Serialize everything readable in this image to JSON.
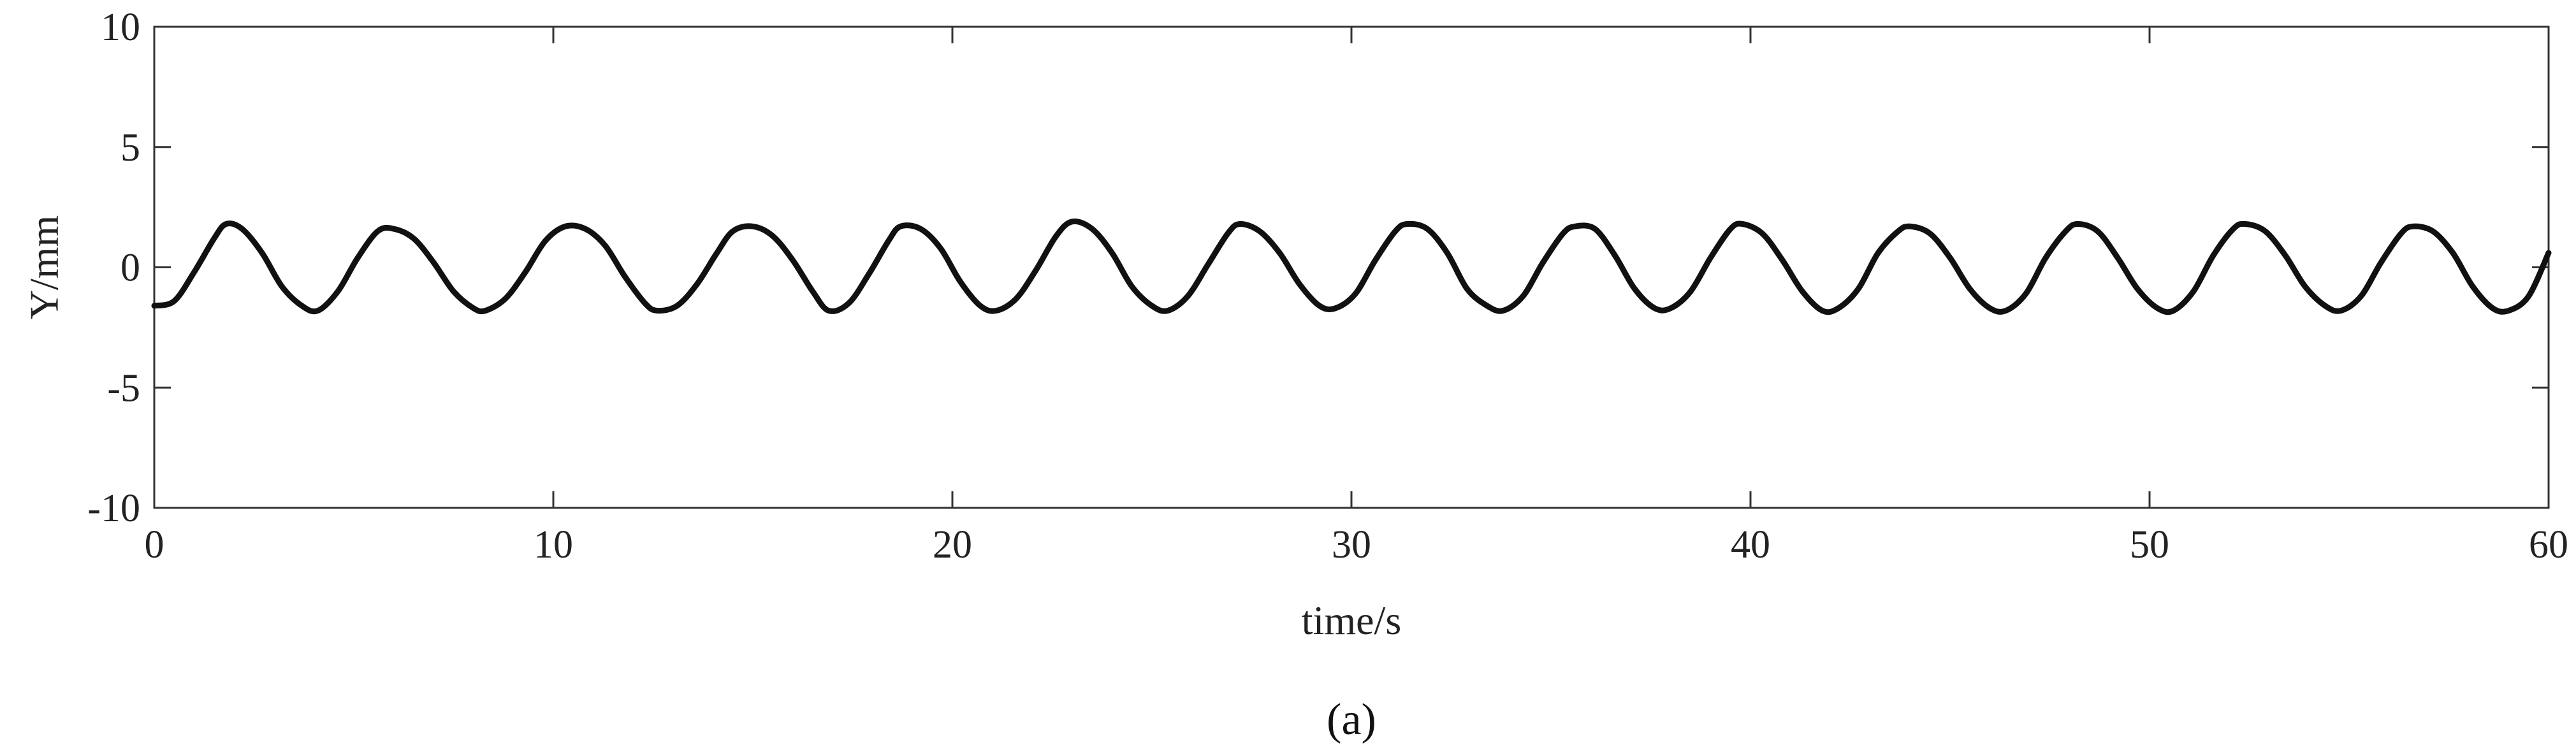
{
  "chart_data": {
    "type": "line",
    "title": "",
    "caption": "(a)",
    "xlabel": "time/s",
    "ylabel": "Y/mm",
    "xlim": [
      0,
      60
    ],
    "ylim": [
      -10,
      10
    ],
    "xticks": [
      0,
      10,
      20,
      30,
      40,
      50,
      60
    ],
    "yticks": [
      -10,
      -5,
      0,
      5,
      10
    ],
    "xtick_labels": [
      "0",
      "10",
      "20",
      "30",
      "40",
      "50",
      "60"
    ],
    "ytick_labels": [
      "-10",
      "-5",
      "0",
      "5",
      "10"
    ],
    "grid": false,
    "legend": "none",
    "line_color": "#111111",
    "series": [
      {
        "x": [
          0,
          0.5,
          1.0,
          1.5,
          1.8,
          2.2,
          2.7,
          3.2,
          3.7,
          4.1,
          4.6,
          5.1,
          5.6,
          6.0,
          6.5,
          7.0,
          7.5,
          8.0,
          8.3,
          8.8,
          9.3,
          9.8,
          10.3,
          10.8,
          11.3,
          11.8,
          12.3,
          12.6,
          13.1,
          13.6,
          14.1,
          14.5,
          15.0,
          15.5,
          16.0,
          16.5,
          16.9,
          17.4,
          17.9,
          18.4,
          18.7,
          19.2,
          19.7,
          20.2,
          20.7,
          21.1,
          21.6,
          22.1,
          22.6,
          23.0,
          23.5,
          24.0,
          24.5,
          25.0,
          25.4,
          25.9,
          26.4,
          26.9,
          27.2,
          27.7,
          28.2,
          28.7,
          29.2,
          29.6,
          30.1,
          30.6,
          31.1,
          31.4,
          31.9,
          32.4,
          32.9,
          33.4,
          33.8,
          34.3,
          34.8,
          35.3,
          35.6,
          36.1,
          36.6,
          37.1,
          37.6,
          38.0,
          38.5,
          39.0,
          39.5,
          39.8,
          40.3,
          40.8,
          41.3,
          41.8,
          42.2,
          42.7,
          43.2,
          43.7,
          44.0,
          44.5,
          45.0,
          45.5,
          46.0,
          46.4,
          46.9,
          47.4,
          47.9,
          48.2,
          48.7,
          49.2,
          49.7,
          50.2,
          50.6,
          51.1,
          51.6,
          52.1,
          52.4,
          52.9,
          53.4,
          53.9,
          54.4,
          54.8,
          55.3,
          55.8,
          56.3,
          56.6,
          57.1,
          57.6,
          58.1,
          58.6,
          59.0,
          59.5,
          60.0
        ],
        "y": [
          -1.6,
          -1.4,
          -0.2,
          1.2,
          1.8,
          1.6,
          0.6,
          -0.8,
          -1.6,
          -1.8,
          -1.0,
          0.4,
          1.5,
          1.6,
          1.2,
          0.2,
          -1.0,
          -1.7,
          -1.8,
          -1.3,
          -0.2,
          1.1,
          1.7,
          1.6,
          0.9,
          -0.4,
          -1.5,
          -1.8,
          -1.6,
          -0.7,
          0.6,
          1.5,
          1.7,
          1.3,
          0.3,
          -1.0,
          -1.8,
          -1.5,
          -0.3,
          1.1,
          1.7,
          1.6,
          0.8,
          -0.6,
          -1.6,
          -1.8,
          -1.3,
          -0.1,
          1.3,
          1.9,
          1.6,
          0.6,
          -0.8,
          -1.6,
          -1.8,
          -1.2,
          0.1,
          1.4,
          1.8,
          1.5,
          0.6,
          -0.7,
          -1.6,
          -1.7,
          -1.1,
          0.3,
          1.5,
          1.8,
          1.6,
          0.6,
          -0.9,
          -1.6,
          -1.8,
          -1.2,
          0.2,
          1.4,
          1.7,
          1.6,
          0.5,
          -0.9,
          -1.7,
          -1.7,
          -1.0,
          0.4,
          1.6,
          1.8,
          1.4,
          0.3,
          -1.0,
          -1.8,
          -1.7,
          -0.9,
          0.6,
          1.5,
          1.7,
          1.4,
          0.4,
          -0.9,
          -1.7,
          -1.8,
          -1.1,
          0.4,
          1.5,
          1.8,
          1.5,
          0.4,
          -0.9,
          -1.7,
          -1.8,
          -1.0,
          0.5,
          1.6,
          1.8,
          1.5,
          0.5,
          -0.8,
          -1.6,
          -1.8,
          -1.2,
          0.2,
          1.4,
          1.7,
          1.5,
          0.6,
          -0.8,
          -1.7,
          -1.8,
          -1.2,
          0.6
        ]
      }
    ]
  }
}
